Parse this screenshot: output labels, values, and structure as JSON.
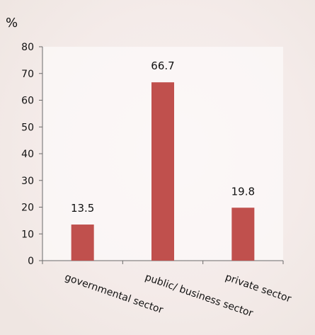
{
  "chart_data": {
    "type": "bar",
    "unit_label": "%",
    "categories": [
      "governmental sector",
      "public/ business sector",
      "private sector"
    ],
    "values": [
      13.5,
      66.7,
      19.8
    ],
    "data_labels": [
      "13.5",
      "66.7",
      "19.8"
    ],
    "ylim": [
      0,
      80
    ],
    "yticks": [
      0,
      10,
      20,
      30,
      40,
      50,
      60,
      70,
      80
    ],
    "grid": false,
    "legend": "none",
    "bar_color": "#c0504d"
  }
}
